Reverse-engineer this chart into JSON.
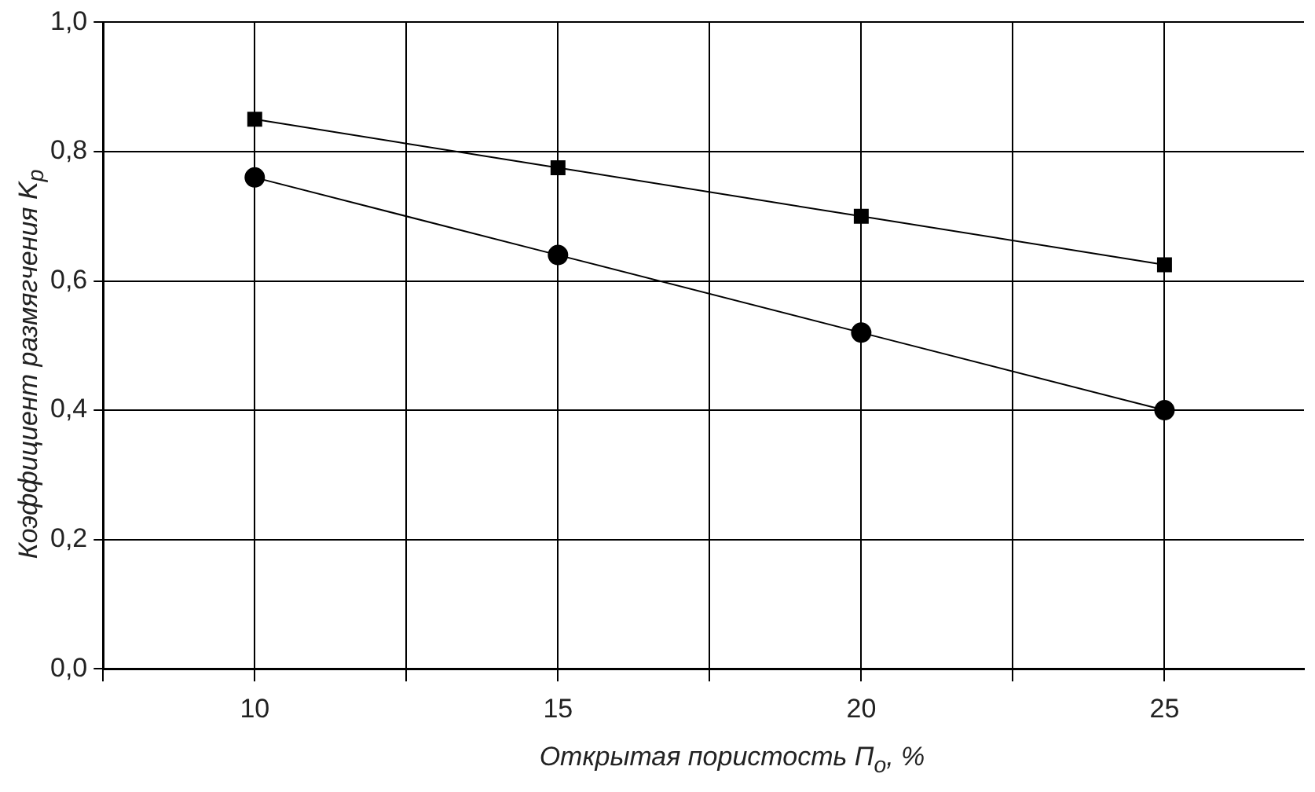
{
  "chart_data": {
    "type": "line",
    "xlabel": "Открытая пористость П$_{о}$, %",
    "ylabel": "Коэффициент размягчения K$_{р}$",
    "x": [
      10,
      15,
      20,
      25
    ],
    "series": [
      {
        "color": "#000000",
        "marker": "square",
        "values": [
          0.85,
          0.775,
          0.7,
          0.625
        ]
      },
      {
        "color": "#000000",
        "marker": "circle",
        "values": [
          0.76,
          0.64,
          0.52,
          0.4
        ]
      }
    ],
    "xlim": [
      7.5,
      27.3
    ],
    "xticks": [
      {
        "value": 7.5,
        "label": null
      },
      10,
      {
        "value": 12.5,
        "label": null
      },
      15,
      {
        "value": 17.5,
        "label": null
      },
      20,
      {
        "value": 22.5,
        "label": null
      },
      25
    ],
    "ylim": [
      0,
      1
    ],
    "yticks": [
      {
        "value": 0,
        "label": "0,0"
      },
      {
        "value": 0.2,
        "label": "0,2"
      },
      {
        "value": 0.4,
        "label": "0,4"
      },
      {
        "value": 0.6,
        "label": "0,6"
      },
      {
        "value": 0.8,
        "label": "0,8"
      },
      {
        "value": 1,
        "label": "1,0"
      }
    ],
    "grid": true,
    "legend": false,
    "line_style": "solid"
  }
}
